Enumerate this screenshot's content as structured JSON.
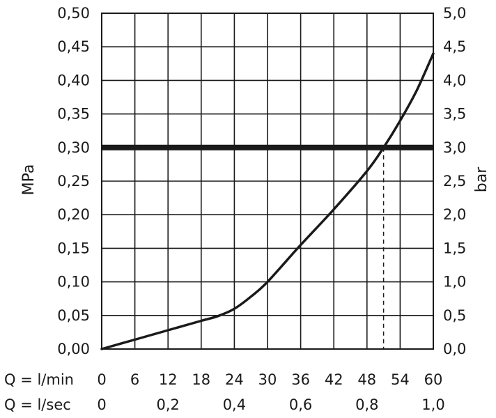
{
  "chart_data": {
    "type": "line",
    "left_axis": {
      "label": "MPa",
      "ticks": [
        "0,00",
        "0,05",
        "0,10",
        "0,15",
        "0,20",
        "0,25",
        "0,30",
        "0,35",
        "0,40",
        "0,45",
        "0,50"
      ],
      "ylim": [
        0,
        0.5
      ]
    },
    "right_axis": {
      "label": "bar",
      "ticks": [
        "0,0",
        "0,5",
        "1,0",
        "1,5",
        "2,0",
        "2,5",
        "3,0",
        "3,5",
        "4,0",
        "4,5",
        "5,0"
      ],
      "ylim": [
        0,
        5
      ]
    },
    "x_axis_lmin": {
      "label": "Q = l/min",
      "ticks": [
        "0",
        "6",
        "12",
        "18",
        "24",
        "30",
        "36",
        "42",
        "48",
        "54",
        "60"
      ],
      "xlim": [
        0,
        60
      ]
    },
    "x_axis_lsec": {
      "label": "Q = l/sec",
      "ticks": [
        {
          "value": 0,
          "text": "0"
        },
        {
          "value": 0.2,
          "text": "0,2"
        },
        {
          "value": 0.4,
          "text": "0,4"
        },
        {
          "value": 0.6,
          "text": "0,6"
        },
        {
          "value": 0.8,
          "text": "0,8"
        },
        {
          "value": 1.0,
          "text": "1,0"
        }
      ]
    },
    "grid": true,
    "series": [
      {
        "x": [
          0,
          6,
          12,
          18,
          21,
          24,
          27,
          30,
          36,
          42,
          48,
          51,
          54,
          57,
          60
        ],
        "y": [
          0,
          0.014,
          0.028,
          0.042,
          0.049,
          0.06,
          0.078,
          0.1,
          0.155,
          0.208,
          0.265,
          0.3,
          0.34,
          0.385,
          0.44
        ]
      }
    ],
    "reference_line": {
      "y": 0.3
    },
    "marker_line": {
      "x": 51,
      "y": 0.3
    }
  }
}
